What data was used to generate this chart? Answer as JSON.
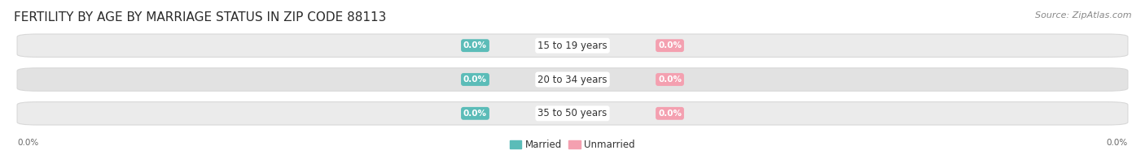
{
  "title": "FERTILITY BY AGE BY MARRIAGE STATUS IN ZIP CODE 88113",
  "source": "Source: ZipAtlas.com",
  "categories": [
    "15 to 19 years",
    "20 to 34 years",
    "35 to 50 years"
  ],
  "married_values": [
    0.0,
    0.0,
    0.0
  ],
  "unmarried_values": [
    0.0,
    0.0,
    0.0
  ],
  "married_color": "#5bbcb8",
  "unmarried_color": "#f4a0b0",
  "bar_bg_light": "#ebebeb",
  "bar_bg_dark": "#e2e2e2",
  "bar_outline": "#d8d8d8",
  "title_fontsize": 11,
  "source_fontsize": 8,
  "label_fontsize": 8.5,
  "value_fontsize": 7.5,
  "background_color": "#ffffff",
  "legend_married": "Married",
  "legend_unmarried": "Unmarried",
  "axis_label": "0.0%"
}
